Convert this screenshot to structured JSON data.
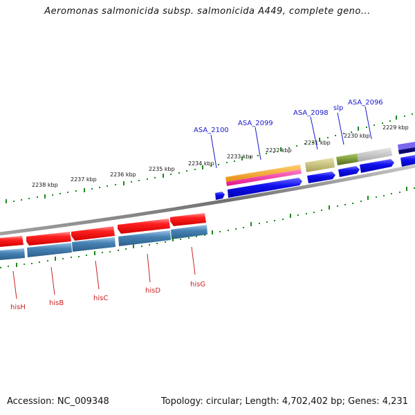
{
  "header": {
    "title": "Aeromonas salmonicida subsp. salmonicida A449, complete geno..."
  },
  "footer": {
    "accession": "Accession: NC_009348",
    "summary": "Topology: circular; Length: 4,702,402 bp; Genes: 4,231"
  },
  "map": {
    "colors": {
      "backbone": "#8c8c8c",
      "ticks": "#1a8a1a",
      "red_feature": "#ee1c1c",
      "steelblue_feature": "#4682b4",
      "blue_feature": "#1010ee",
      "orange_feature": "#f5a020",
      "magenta_feature": "#ee2aa0",
      "khaki_feature": "#bdb76b",
      "olive_feature": "#6b8e23",
      "gray_feature": "#c0c0c0",
      "navy_feature": "#0a0a70",
      "slate_feature": "#7b68ee",
      "forward_label": "#1515d0",
      "reverse_label": "#c81e1e"
    },
    "scale_labels": [
      "2238 kbp",
      "2237 kbp",
      "2236 kbp",
      "2235 kbp",
      "2234 kbp",
      "2233 kbp",
      "2232 kbp",
      "2231 kbp",
      "2230 kbp",
      "2229 kbp"
    ],
    "forward_genes": [
      "ASA_2100",
      "ASA_2099",
      "ASA_2098",
      "slp",
      "ASA_2096"
    ],
    "reverse_genes": [
      "hisH",
      "hisB",
      "hisC",
      "hisD",
      "hisG"
    ]
  }
}
